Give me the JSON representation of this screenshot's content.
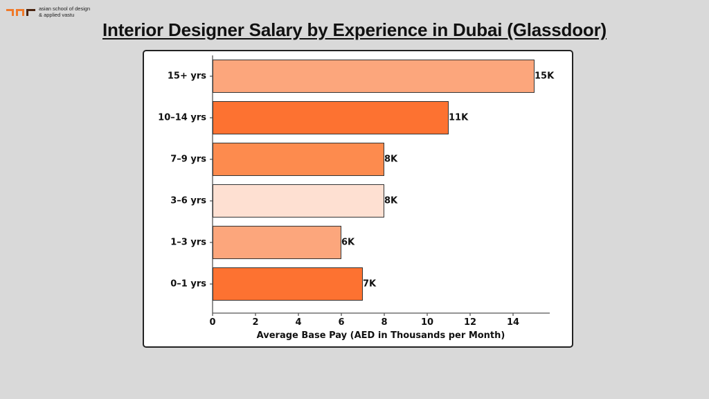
{
  "logo": {
    "line1": "asian school of design",
    "line2": "& applied vastu",
    "colors": [
      "#f07a2a",
      "#f07a2a",
      "#4a2410"
    ]
  },
  "page": {
    "title": "Interior Designer Salary by Experience in Dubai (Glassdoor)"
  },
  "chart_data": {
    "type": "bar",
    "orientation": "horizontal",
    "title": "Interior Designer Salary by Experience in Dubai (Glassdoor)",
    "xlabel": "Average Base Pay (AED in Thousands per Month)",
    "ylabel": "",
    "categories": [
      "15+ yrs",
      "10–14 yrs",
      "7–9 yrs",
      "3–6 yrs",
      "1–3 yrs",
      "0–1 yrs"
    ],
    "values": [
      15,
      11,
      8,
      8,
      6,
      7
    ],
    "data_labels": [
      "15K",
      "11K",
      "8K",
      "8K",
      "6K",
      "7K"
    ],
    "bar_colors": [
      "#fca67c",
      "#fd7231",
      "#fd8b4e",
      "#fee0d2",
      "#fca67c",
      "#fd7231"
    ],
    "xticks": [
      "0",
      "2",
      "4",
      "6",
      "8",
      "10",
      "12",
      "14"
    ],
    "xlim": [
      0,
      15.7
    ],
    "grid": false,
    "legend": null
  }
}
